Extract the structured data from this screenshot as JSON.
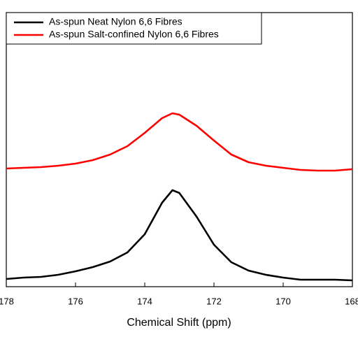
{
  "chart_data": {
    "type": "line",
    "x_label": "Chemical Shift (ppm)",
    "x": [
      178,
      177.5,
      177,
      176.5,
      176,
      175.5,
      175,
      174.5,
      174,
      173.5,
      173.2,
      173,
      172.5,
      172,
      171.5,
      171,
      170.5,
      170,
      169.5,
      169,
      168.5,
      168
    ],
    "series": [
      {
        "name": "As-spun Neat Nylon 6,6 Fibres",
        "color": "#000000",
        "values": [
          11,
          13,
          14,
          17,
          22,
          28,
          36,
          49,
          75,
          120,
          138,
          134,
          100,
          60,
          35,
          23,
          17,
          13,
          10,
          10,
          10,
          9
        ]
      },
      {
        "name": "As-spun Salt-confined Nylon 6,6 Fibres",
        "color": "#ff0000",
        "values": [
          169,
          170,
          171,
          173,
          176,
          181,
          189,
          201,
          220,
          241,
          248,
          246,
          230,
          209,
          189,
          178,
          173,
          170,
          167,
          166,
          166,
          168
        ]
      }
    ],
    "xlim": [
      178,
      168
    ],
    "xticks": [
      178,
      176,
      174,
      172,
      170,
      168
    ],
    "ylim": [
      0,
      392
    ],
    "grid": false,
    "legend_position": "upper-left"
  }
}
